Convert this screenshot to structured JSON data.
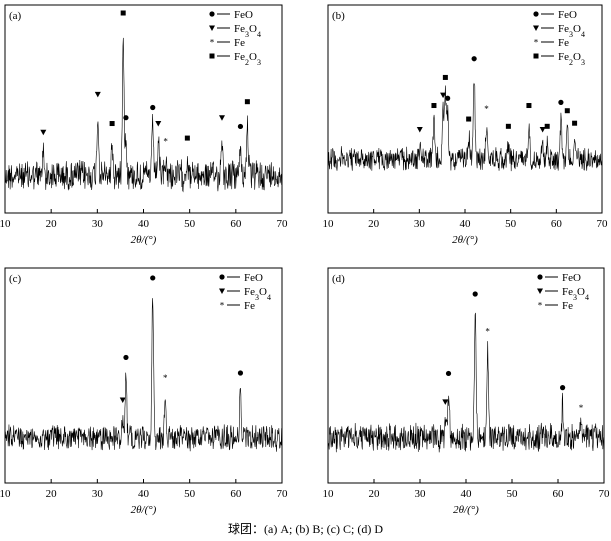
{
  "caption": "球团：(a) A; (b) B; (c) C; (d) D",
  "chart_data": [
    {
      "type": "line",
      "panel_label": "(a)",
      "xlabel": "2θ/(°)",
      "xlim": [
        10,
        70
      ],
      "xticks": [
        10,
        20,
        30,
        40,
        50,
        60,
        70
      ],
      "legend": [
        "FeO",
        "Fe3O4",
        "Fe",
        "Fe2O3"
      ],
      "legend_position": "top-right",
      "peaks": [
        {
          "x": 18.3,
          "h": 0.16,
          "phase": "Fe3O4"
        },
        {
          "x": 30.1,
          "h": 0.42,
          "phase": "Fe3O4"
        },
        {
          "x": 33.2,
          "h": 0.22,
          "phase": "Fe2O3"
        },
        {
          "x": 35.6,
          "h": 1.0,
          "phase": "Fe2O3"
        },
        {
          "x": 36.2,
          "h": 0.26,
          "phase": "FeO"
        },
        {
          "x": 42.0,
          "h": 0.33,
          "phase": "FeO"
        },
        {
          "x": 43.2,
          "h": 0.22,
          "phase": "Fe3O4"
        },
        {
          "x": 44.8,
          "h": 0.1,
          "phase": "Fe"
        },
        {
          "x": 49.5,
          "h": 0.12,
          "phase": "Fe2O3"
        },
        {
          "x": 57.0,
          "h": 0.26,
          "phase": "Fe3O4"
        },
        {
          "x": 61.0,
          "h": 0.2,
          "phase": "FeO"
        },
        {
          "x": 62.5,
          "h": 0.37,
          "phase": "Fe2O3"
        }
      ]
    },
    {
      "type": "line",
      "panel_label": "(b)",
      "xlabel": "2θ/(°)",
      "xlim": [
        10,
        70
      ],
      "xticks": [
        10,
        20,
        30,
        40,
        50,
        60,
        70
      ],
      "legend": [
        "FeO",
        "Fe3O4",
        "Fe",
        "Fe2O3"
      ],
      "legend_position": "top-right",
      "peaks": [
        {
          "x": 30.1,
          "h": 0.12,
          "phase": "Fe3O4"
        },
        {
          "x": 33.2,
          "h": 0.35,
          "phase": "Fe2O3"
        },
        {
          "x": 35.2,
          "h": 0.45,
          "phase": "Fe3O4"
        },
        {
          "x": 35.7,
          "h": 0.62,
          "phase": "Fe2O3"
        },
        {
          "x": 36.2,
          "h": 0.42,
          "phase": "FeO"
        },
        {
          "x": 40.8,
          "h": 0.22,
          "phase": "Fe2O3"
        },
        {
          "x": 42.0,
          "h": 0.8,
          "phase": "FeO"
        },
        {
          "x": 44.7,
          "h": 0.32,
          "phase": "Fe"
        },
        {
          "x": 49.5,
          "h": 0.15,
          "phase": "Fe2O3"
        },
        {
          "x": 54.0,
          "h": 0.35,
          "phase": "Fe2O3"
        },
        {
          "x": 57.0,
          "h": 0.12,
          "phase": "Fe3O4"
        },
        {
          "x": 58.0,
          "h": 0.15,
          "phase": "Fe2O3"
        },
        {
          "x": 61.0,
          "h": 0.38,
          "phase": "FeO"
        },
        {
          "x": 62.4,
          "h": 0.3,
          "phase": "Fe2O3"
        },
        {
          "x": 64.0,
          "h": 0.18,
          "phase": "Fe2O3"
        }
      ]
    },
    {
      "type": "line",
      "panel_label": "(c)",
      "xlabel": "2θ/(°)",
      "xlim": [
        10,
        70
      ],
      "xticks": [
        10,
        20,
        30,
        40,
        50,
        60,
        70
      ],
      "legend": [
        "FeO",
        "Fe3O4",
        "Fe"
      ],
      "legend_position": "top-right",
      "peaks": [
        {
          "x": 35.5,
          "h": 0.14,
          "phase": "Fe3O4"
        },
        {
          "x": 36.2,
          "h": 0.44,
          "phase": "FeO"
        },
        {
          "x": 42.0,
          "h": 1.0,
          "phase": "FeO"
        },
        {
          "x": 44.7,
          "h": 0.3,
          "phase": "Fe"
        },
        {
          "x": 61.0,
          "h": 0.33,
          "phase": "FeO"
        }
      ]
    },
    {
      "type": "line",
      "panel_label": "(d)",
      "xlabel": "2θ/(°)",
      "xlim": [
        10,
        70
      ],
      "xticks": [
        10,
        20,
        30,
        40,
        50,
        60,
        70
      ],
      "legend": [
        "FeO",
        "Fe3O4",
        "Fe"
      ],
      "legend_position": "top-right",
      "peaks": [
        {
          "x": 35.5,
          "h": 0.12,
          "phase": "Fe3O4"
        },
        {
          "x": 36.2,
          "h": 0.32,
          "phase": "FeO"
        },
        {
          "x": 42.0,
          "h": 0.88,
          "phase": "FeO"
        },
        {
          "x": 44.7,
          "h": 0.62,
          "phase": "Fe"
        },
        {
          "x": 61.0,
          "h": 0.22,
          "phase": "FeO"
        },
        {
          "x": 65.0,
          "h": 0.08,
          "phase": "Fe"
        }
      ]
    }
  ],
  "phase_markers": {
    "FeO": "circle",
    "Fe3O4": "triangle-down",
    "Fe": "star",
    "Fe2O3": "square"
  },
  "colors": {
    "line": "#000000",
    "background": "#ffffff"
  }
}
